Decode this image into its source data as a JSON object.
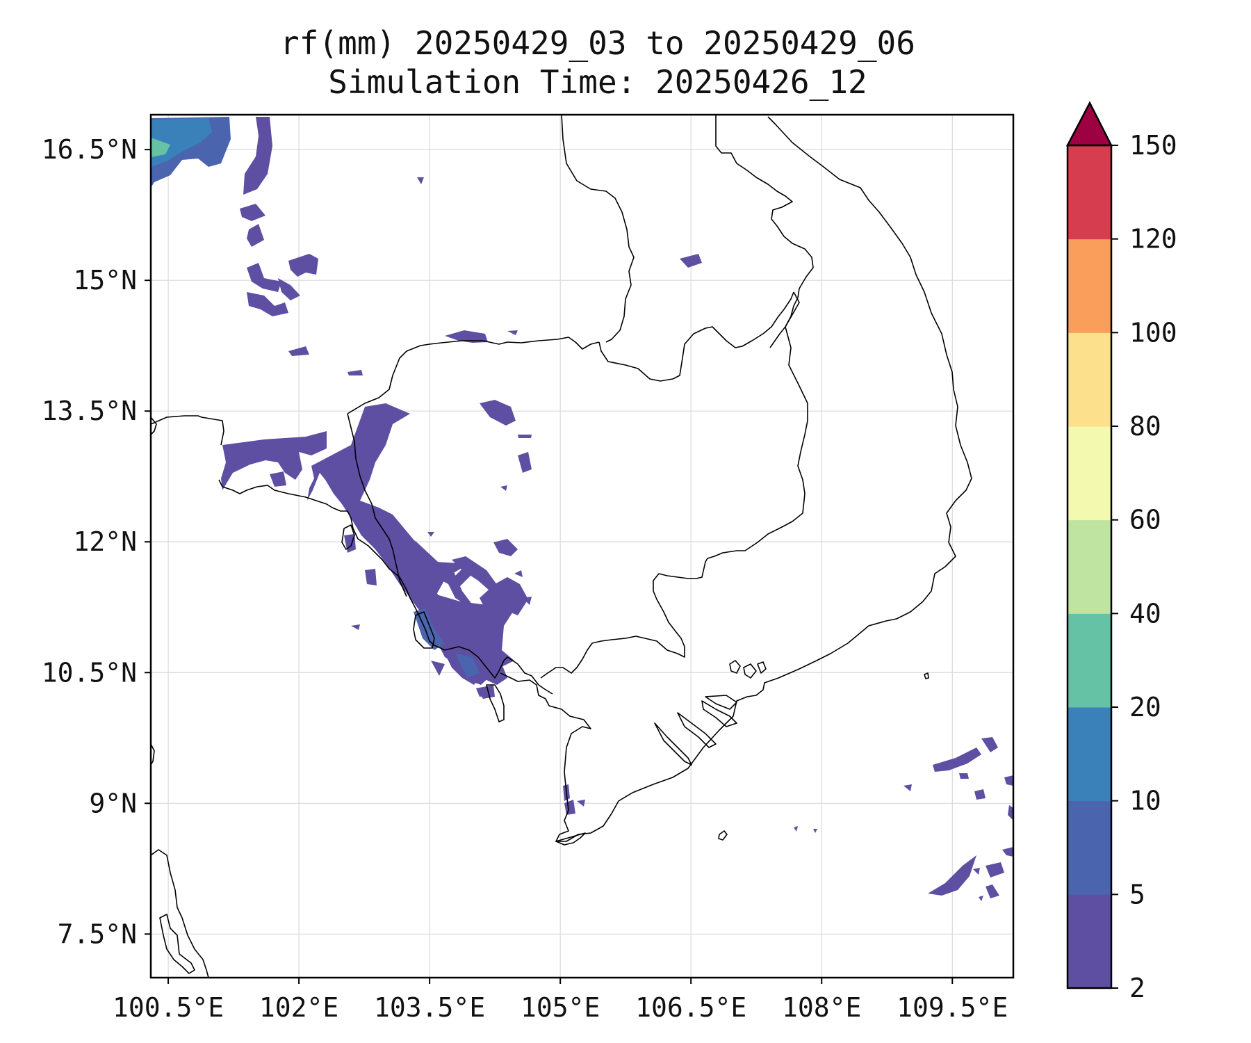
{
  "title": {
    "line1": "rf(mm) 20250429_03 to 20250429_06",
    "line2": "Simulation Time: 20250426_12"
  },
  "map": {
    "lon_range": [
      100.3,
      110.2
    ],
    "lat_range": [
      7.0,
      16.9
    ],
    "x_ticks": [
      {
        "value": 100.5,
        "label": "100.5°E"
      },
      {
        "value": 102.0,
        "label": "102°E"
      },
      {
        "value": 103.5,
        "label": "103.5°E"
      },
      {
        "value": 105.0,
        "label": "105°E"
      },
      {
        "value": 106.5,
        "label": "106.5°E"
      },
      {
        "value": 108.0,
        "label": "108°E"
      },
      {
        "value": 109.5,
        "label": "109.5°E"
      }
    ],
    "y_ticks": [
      {
        "value": 16.5,
        "label": "16.5°N"
      },
      {
        "value": 15.0,
        "label": "15°N"
      },
      {
        "value": 13.5,
        "label": "13.5°N"
      },
      {
        "value": 12.0,
        "label": "12°N"
      },
      {
        "value": 10.5,
        "label": "10.5°N"
      },
      {
        "value": 9.0,
        "label": "9°N"
      },
      {
        "value": 7.5,
        "label": "7.5°N"
      }
    ],
    "grid": true
  },
  "colorbar": {
    "levels": [
      {
        "label": "2"
      },
      {
        "label": "5"
      },
      {
        "label": "10"
      },
      {
        "label": "20"
      },
      {
        "label": "40"
      },
      {
        "label": "60"
      },
      {
        "label": "80"
      },
      {
        "label": "100"
      },
      {
        "label": "120"
      },
      {
        "label": "150"
      }
    ],
    "colors": [
      "#5e4fa2",
      "#4a64ad",
      "#3a80b9",
      "#66c2a5",
      "#bfe3a0",
      "#f3f9ae",
      "#fde08b",
      "#f99e5b",
      "#d63e4f"
    ],
    "extend_color": "#9e0142",
    "extend": "max"
  },
  "rain_colors": {
    "level_2_5": "#5e4fa2",
    "level_5_10": "#4a64ad",
    "level_10_20": "#3a80b9",
    "level_20_40": "#66c2a5"
  }
}
